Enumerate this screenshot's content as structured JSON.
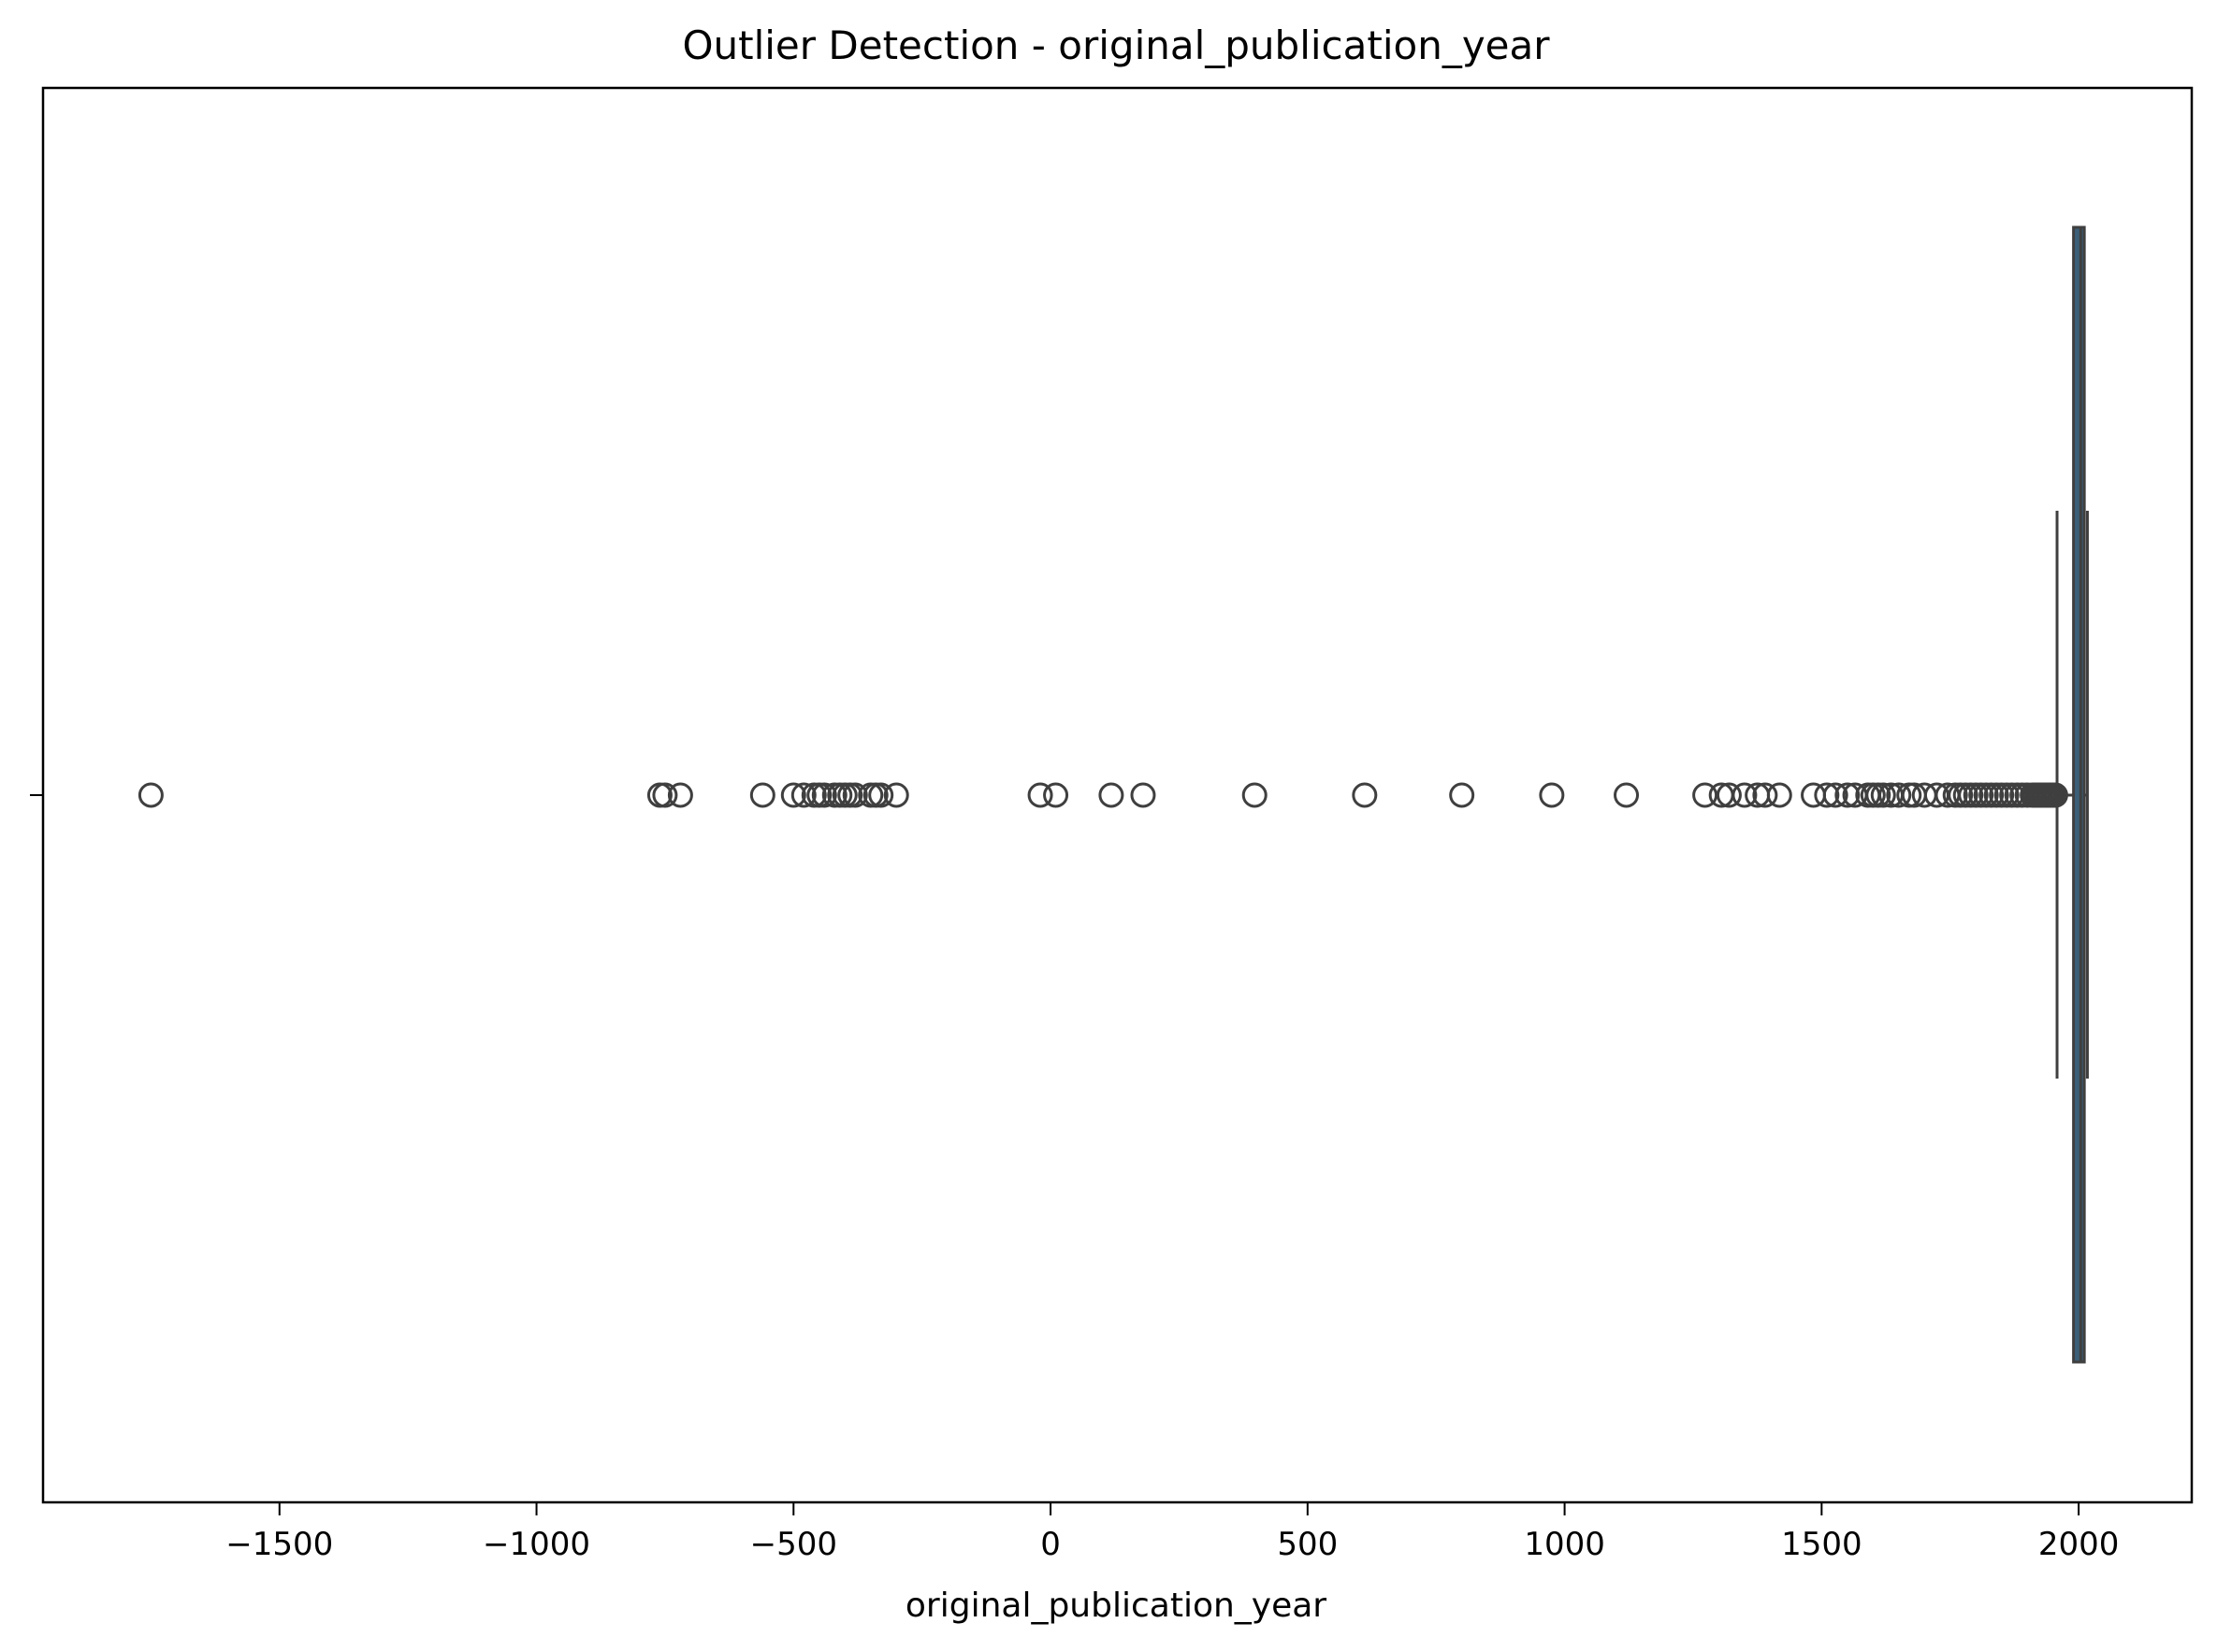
{
  "chart_data": {
    "type": "box",
    "title": "Outlier Detection - original_publication_year",
    "xlabel": "original_publication_year",
    "ylabel": "",
    "orientation": "horizontal",
    "xlim": [
      -1960,
      2220
    ],
    "xticks": [
      -1500,
      -1000,
      -500,
      0,
      500,
      1000,
      1500,
      2000
    ],
    "xtick_labels": [
      "−1500",
      "−1000",
      "−500",
      "0",
      "500",
      "1000",
      "1500",
      "2000"
    ],
    "grid": false,
    "box": {
      "q1": 1990,
      "median": 2004,
      "q3": 2011,
      "whisker_low": 1958,
      "whisker_high": 2017,
      "box_color": "#3b5f78",
      "line_color": "#3f3f3f"
    },
    "outliers": [
      -1750,
      -760,
      -750,
      -720,
      -560,
      -500,
      -480,
      -460,
      -450,
      -440,
      -420,
      -410,
      -400,
      -390,
      -380,
      -350,
      -340,
      -330,
      -300,
      -20,
      10,
      118,
      180,
      397,
      611,
      800,
      975,
      1120,
      1273,
      1305,
      1320,
      1350,
      1375,
      1390,
      1418,
      1484,
      1510,
      1527,
      1550,
      1565,
      1590,
      1600,
      1610,
      1620,
      1635,
      1650,
      1670,
      1680,
      1700,
      1724,
      1745,
      1760,
      1770,
      1780,
      1790,
      1800,
      1810,
      1820,
      1830,
      1840,
      1850,
      1860,
      1870,
      1880,
      1890,
      1900,
      1910,
      1915,
      1920,
      1925,
      1930,
      1935,
      1940,
      1945,
      1950,
      1955
    ]
  }
}
